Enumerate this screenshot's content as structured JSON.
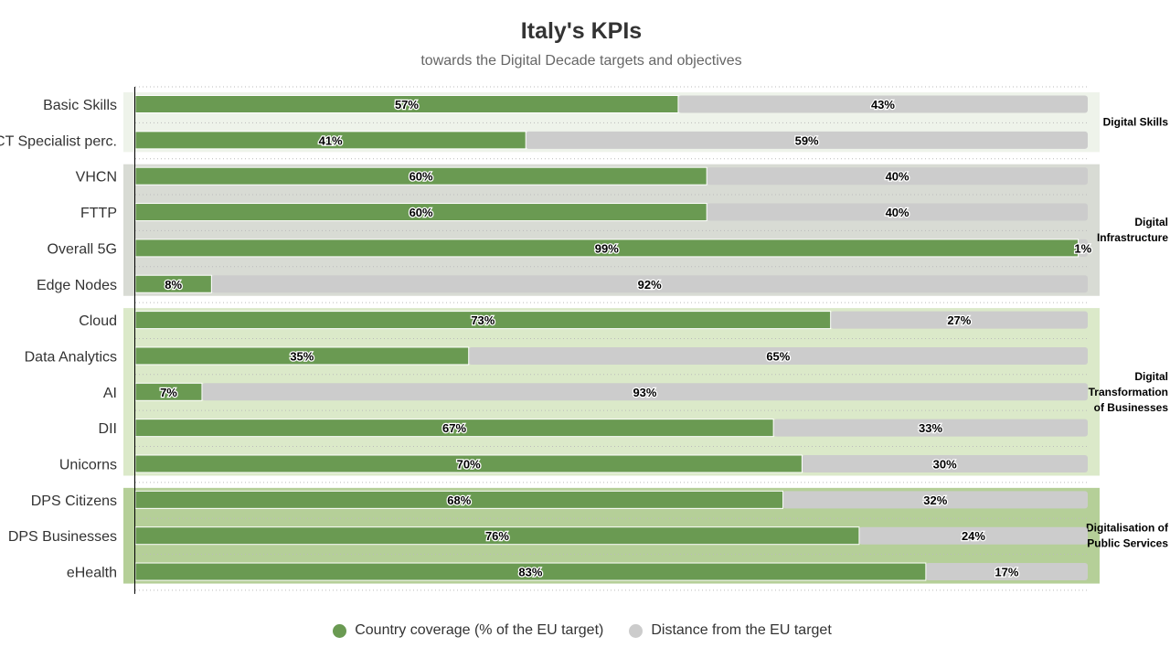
{
  "chart_data": {
    "type": "bar",
    "orientation": "horizontal",
    "stacked": true,
    "title": "Italy's KPIs",
    "subtitle": "towards the Digital Decade targets and objectives",
    "xlim": [
      0,
      100
    ],
    "categories": [
      "Basic Skills",
      "ICT Specialist perc.",
      "VHCN",
      "FTTP",
      "Overall 5G",
      "Edge Nodes",
      "Cloud",
      "Data Analytics",
      "AI",
      "DII",
      "Unicorns",
      "DPS Citizens",
      "DPS Businesses",
      "eHealth"
    ],
    "series": [
      {
        "name": "Country coverage (% of the EU target)",
        "color": "#6a9a52",
        "values": [
          57,
          41,
          60,
          60,
          99,
          8,
          73,
          35,
          7,
          67,
          70,
          68,
          76,
          83
        ]
      },
      {
        "name": "Distance from the EU target",
        "color": "#cccccc",
        "values": [
          43,
          59,
          40,
          40,
          1,
          92,
          27,
          65,
          93,
          33,
          30,
          32,
          24,
          17
        ]
      }
    ],
    "value_suffix": "%",
    "groups": [
      {
        "label_lines": [
          "Digital Skills"
        ],
        "start": 0,
        "end": 1,
        "color": "#eef3ea"
      },
      {
        "label_lines": [
          "Digital",
          "Infrastructure"
        ],
        "start": 2,
        "end": 5,
        "color": "#d8dbd4"
      },
      {
        "label_lines": [
          "Digital",
          "Transformation",
          "of Businesses"
        ],
        "start": 6,
        "end": 10,
        "color": "#dbe9c9"
      },
      {
        "label_lines": [
          "Digitalisation of",
          "Public Services"
        ],
        "start": 11,
        "end": 13,
        "color": "#b5cf98"
      }
    ]
  }
}
